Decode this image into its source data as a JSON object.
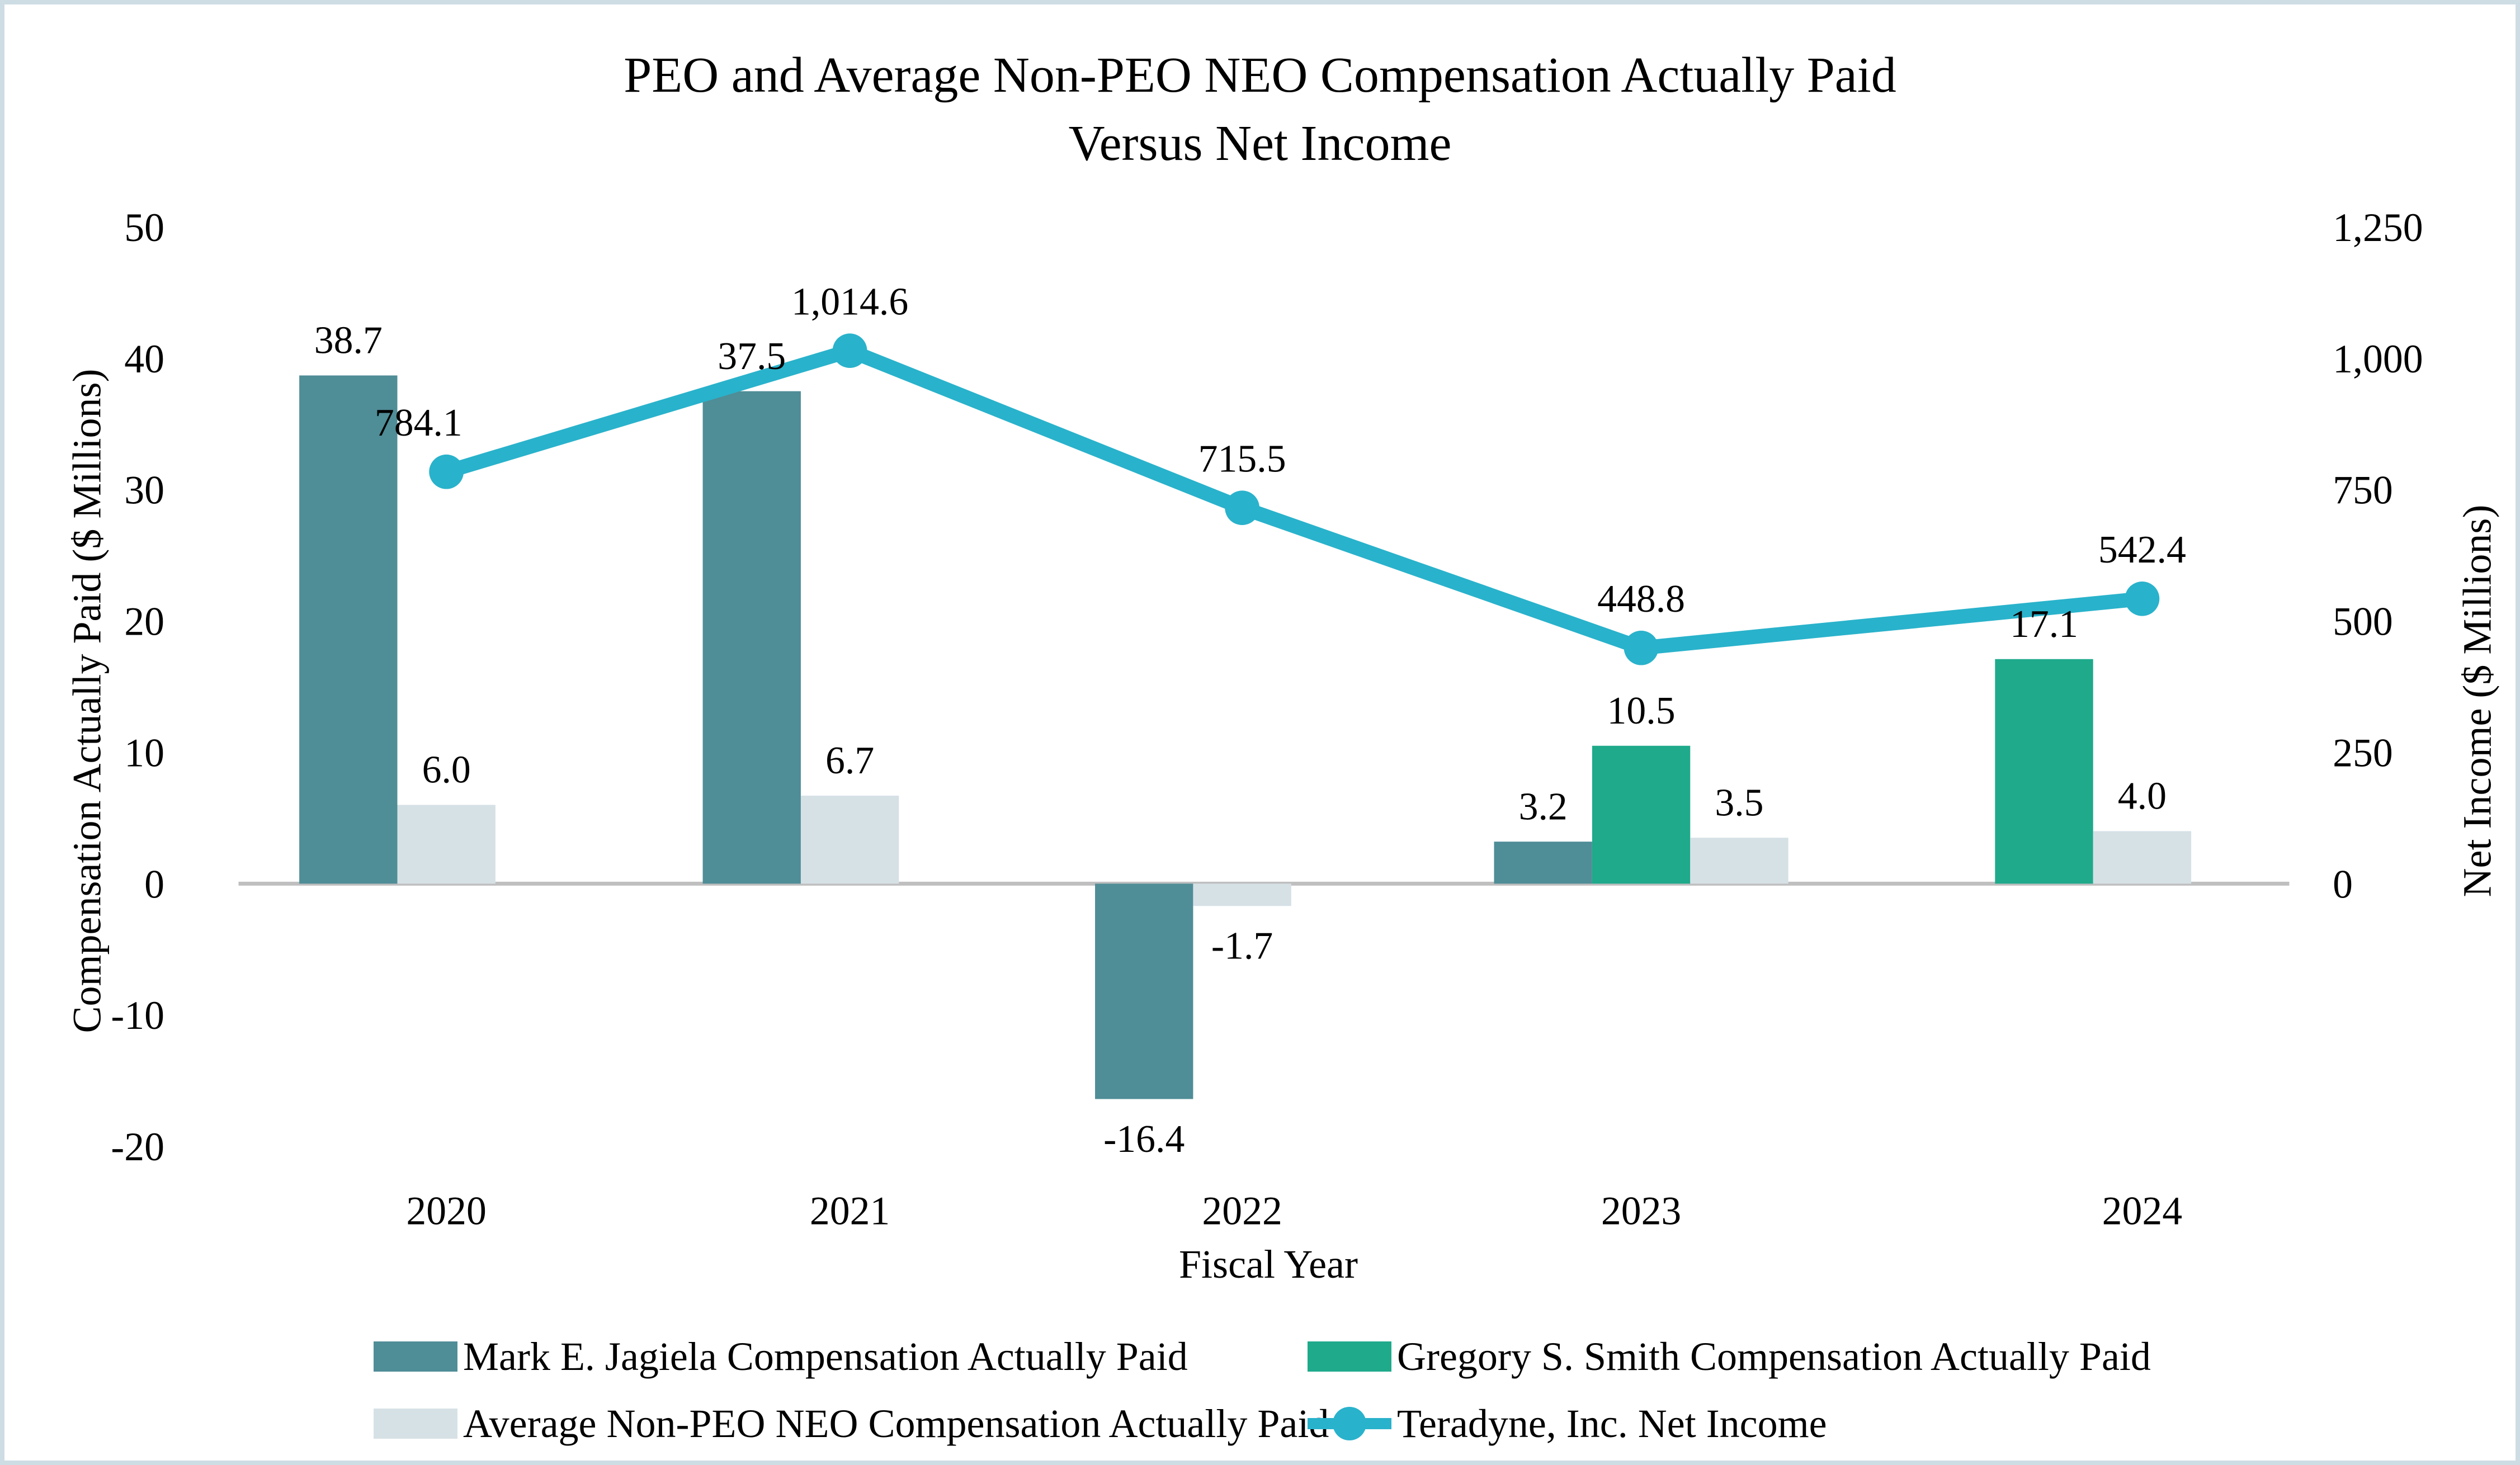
{
  "title": {
    "line1": "PEO and Average Non-PEO NEO Compensation Actually Paid",
    "line2": "Versus Net Income"
  },
  "axes": {
    "left_title": "Compensation Actually Paid ($ Millions)",
    "right_title": "Net Income ($ Millions)",
    "x_title": "Fiscal Year"
  },
  "chart_data": {
    "type": "combo-bar-line",
    "title": "PEO and Average Non-PEO NEO Compensation Actually Paid Versus Net Income",
    "xlabel": "Fiscal Year",
    "categories": [
      "2020",
      "2021",
      "2022",
      "2023",
      "2024"
    ],
    "left_axis": {
      "title": "Compensation Actually Paid ($ Millions)",
      "min": -20,
      "max": 50,
      "tick_interval": 10,
      "ticks": [
        "50",
        "40",
        "30",
        "20",
        "10",
        "0",
        "-10",
        "-20"
      ]
    },
    "right_axis": {
      "title": "Net Income ($ Millions)",
      "min": 0,
      "max": 1250,
      "tick_interval": 250,
      "ticks": [
        "1,250",
        "1,000",
        "750",
        "500",
        "250",
        "0"
      ]
    },
    "grid": "zero-line-only",
    "legend_position": "bottom",
    "series": [
      {
        "name": "Mark E. Jagiela Compensation Actually Paid",
        "type": "bar",
        "axis": "left",
        "color": "#4F8D97",
        "values": [
          38.7,
          37.5,
          -16.4,
          3.2,
          null
        ]
      },
      {
        "name": "Gregory S. Smith Compensation Actually Paid",
        "type": "bar",
        "axis": "left",
        "color": "#1EAA8B",
        "values": [
          null,
          null,
          null,
          10.5,
          17.1
        ]
      },
      {
        "name": "Average Non-PEO NEO Compensation Actually Paid",
        "type": "bar",
        "axis": "left",
        "color": "#D6E1E6",
        "values": [
          6.0,
          6.7,
          -1.7,
          3.5,
          4.0
        ]
      },
      {
        "name": "Teradyne, Inc. Net Income",
        "type": "line",
        "axis": "right",
        "color": "#29B2CB",
        "values": [
          784.1,
          1014.6,
          715.5,
          448.8,
          542.4
        ]
      }
    ],
    "colors": {
      "zero_line": "#BFBFBF",
      "frame_border": "#CEDDE4",
      "text": "#000000",
      "background": "#FFFFFF"
    }
  }
}
